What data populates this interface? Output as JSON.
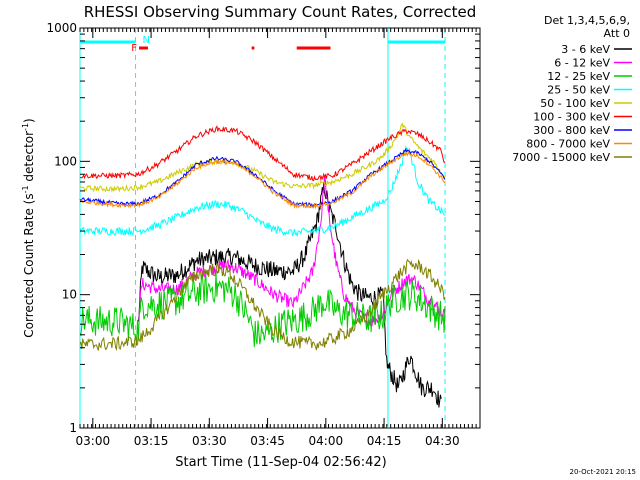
{
  "chart_data": {
    "type": "line",
    "title": "RHESSI Observing Summary Count Rates, Corrected",
    "xlabel": "Start Time (11-Sep-04 02:56:42)",
    "ylabel_main": "Corrected Count Rate (s",
    "ylabel_sup1": "-1",
    "ylabel_mid": " detector",
    "ylabel_sup2": "-1",
    "ylabel_end": ")",
    "x_range_min": [
      0,
      103
    ],
    "y_log": true,
    "ylim": [
      1,
      1000
    ],
    "x_ticks": [
      {
        "label": "03:00",
        "min": 3.3
      },
      {
        "label": "03:15",
        "min": 18.3
      },
      {
        "label": "03:30",
        "min": 33.3
      },
      {
        "label": "03:45",
        "min": 48.3
      },
      {
        "label": "04:00",
        "min": 63.3
      },
      {
        "label": "04:15",
        "min": 78.3
      },
      {
        "label": "04:30",
        "min": 93.3
      }
    ],
    "y_ticks": [
      {
        "label": "1",
        "value": 1
      },
      {
        "label": "10",
        "value": 10
      },
      {
        "label": "100",
        "value": 100
      },
      {
        "label": "1000",
        "value": 1000
      }
    ],
    "legend": {
      "header_1": "Det 1,3,4,5,6,9,",
      "header_2": "Att 0",
      "position": "right"
    },
    "series": [
      {
        "name": "3 - 6 keV",
        "color": "#000000",
        "pts": [
          [
            15,
            6.0
          ],
          [
            16,
            16.0
          ],
          [
            20,
            13.5
          ],
          [
            25,
            14.0
          ],
          [
            30,
            18.0
          ],
          [
            35,
            19.0
          ],
          [
            40,
            19.0
          ],
          [
            45,
            16.5
          ],
          [
            50,
            15.0
          ],
          [
            55,
            15.0
          ],
          [
            58,
            20.0
          ],
          [
            61,
            35.0
          ],
          [
            62,
            50.0
          ],
          [
            63,
            65.0
          ],
          [
            64,
            45.0
          ],
          [
            66,
            32.0
          ],
          [
            68,
            18.0
          ],
          [
            70,
            12.0
          ],
          [
            72,
            10.0
          ],
          [
            74,
            9.5
          ],
          [
            76,
            9.5
          ],
          [
            78,
            10.0
          ],
          [
            79,
            3.0
          ],
          [
            82,
            2.0
          ],
          [
            85,
            3.5
          ],
          [
            88,
            2.0
          ],
          [
            91,
            2.0
          ],
          [
            93,
            1.5
          ]
        ],
        "noisy": 0.07
      },
      {
        "name": "6 - 12 keV",
        "color": "#ff00ff",
        "pts": [
          [
            15,
            7.0
          ],
          [
            16,
            12.0
          ],
          [
            20,
            11.0
          ],
          [
            25,
            11.0
          ],
          [
            30,
            14.5
          ],
          [
            35,
            16.0
          ],
          [
            38,
            16.5
          ],
          [
            40,
            16.0
          ],
          [
            45,
            13.0
          ],
          [
            50,
            10.0
          ],
          [
            55,
            8.5
          ],
          [
            60,
            15.0
          ],
          [
            62,
            35.0
          ],
          [
            63,
            75.0
          ],
          [
            64,
            40.0
          ],
          [
            66,
            17.0
          ],
          [
            68,
            10.0
          ],
          [
            70,
            8.0
          ],
          [
            72,
            7.0
          ],
          [
            74,
            6.5
          ],
          [
            76,
            6.5
          ],
          [
            78,
            7.0
          ],
          [
            80,
            10.0
          ],
          [
            84,
            13.0
          ],
          [
            86,
            13.0
          ],
          [
            90,
            9.0
          ],
          [
            94,
            7.0
          ]
        ],
        "noisy": 0.05
      },
      {
        "name": "12 - 25 keV",
        "color": "#00cc00",
        "pts": [
          [
            0,
            6.5
          ],
          [
            5,
            6.3
          ],
          [
            10,
            6.3
          ],
          [
            15,
            5.5
          ],
          [
            16,
            8.5
          ],
          [
            20,
            8.5
          ],
          [
            25,
            9.0
          ],
          [
            30,
            10.5
          ],
          [
            35,
            11.5
          ],
          [
            38,
            11.0
          ],
          [
            40,
            10.0
          ],
          [
            43,
            7.0
          ],
          [
            45,
            5.0
          ],
          [
            48,
            5.0
          ],
          [
            52,
            6.0
          ],
          [
            56,
            6.5
          ],
          [
            60,
            7.5
          ],
          [
            63,
            9.0
          ],
          [
            66,
            7.5
          ],
          [
            70,
            7.0
          ],
          [
            74,
            6.5
          ],
          [
            78,
            7.0
          ],
          [
            80,
            9.0
          ],
          [
            84,
            10.0
          ],
          [
            86,
            10.0
          ],
          [
            90,
            8.0
          ],
          [
            94,
            6.5
          ]
        ],
        "noisy": 0.12
      },
      {
        "name": "25 - 50 keV",
        "color": "#00ffff",
        "pts": [
          [
            0,
            30
          ],
          [
            10,
            30
          ],
          [
            15,
            30
          ],
          [
            20,
            33
          ],
          [
            25,
            38
          ],
          [
            30,
            45
          ],
          [
            35,
            48
          ],
          [
            38,
            47
          ],
          [
            42,
            42
          ],
          [
            46,
            35
          ],
          [
            50,
            31
          ],
          [
            55,
            29
          ],
          [
            60,
            30
          ],
          [
            65,
            32
          ],
          [
            70,
            38
          ],
          [
            75,
            45
          ],
          [
            78,
            50
          ],
          [
            80,
            60
          ],
          [
            83,
            100
          ],
          [
            84,
            130
          ],
          [
            85,
            115
          ],
          [
            87,
            70
          ],
          [
            90,
            50
          ],
          [
            94,
            40
          ]
        ],
        "noisy": 0.03
      },
      {
        "name": "50 - 100 keV",
        "color": "#cccc00",
        "pts": [
          [
            0,
            63
          ],
          [
            10,
            62
          ],
          [
            15,
            64
          ],
          [
            20,
            70
          ],
          [
            25,
            82
          ],
          [
            30,
            95
          ],
          [
            35,
            100
          ],
          [
            40,
            98
          ],
          [
            45,
            85
          ],
          [
            50,
            70
          ],
          [
            55,
            65
          ],
          [
            60,
            66
          ],
          [
            65,
            70
          ],
          [
            70,
            80
          ],
          [
            75,
            95
          ],
          [
            78,
            110
          ],
          [
            80,
            130
          ],
          [
            82,
            160
          ],
          [
            83,
            190
          ],
          [
            85,
            150
          ],
          [
            88,
            120
          ],
          [
            91,
            100
          ],
          [
            94,
            75
          ]
        ],
        "noisy": 0.02
      },
      {
        "name": "100 - 300 keV",
        "color": "#ff0000",
        "pts": [
          [
            0,
            78
          ],
          [
            10,
            78
          ],
          [
            15,
            80
          ],
          [
            20,
            95
          ],
          [
            25,
            120
          ],
          [
            30,
            155
          ],
          [
            35,
            175
          ],
          [
            40,
            170
          ],
          [
            45,
            140
          ],
          [
            50,
            105
          ],
          [
            55,
            80
          ],
          [
            60,
            75
          ],
          [
            65,
            78
          ],
          [
            70,
            95
          ],
          [
            75,
            120
          ],
          [
            80,
            150
          ],
          [
            84,
            170
          ],
          [
            87,
            160
          ],
          [
            90,
            140
          ],
          [
            93,
            120
          ],
          [
            94,
            95
          ]
        ],
        "noisy": 0.02
      },
      {
        "name": "300 - 800 keV",
        "color": "#0000ff",
        "pts": [
          [
            0,
            52
          ],
          [
            10,
            48
          ],
          [
            15,
            48
          ],
          [
            20,
            55
          ],
          [
            25,
            70
          ],
          [
            30,
            95
          ],
          [
            35,
            105
          ],
          [
            40,
            100
          ],
          [
            45,
            80
          ],
          [
            50,
            60
          ],
          [
            55,
            48
          ],
          [
            60,
            47
          ],
          [
            65,
            50
          ],
          [
            70,
            60
          ],
          [
            75,
            80
          ],
          [
            80,
            100
          ],
          [
            84,
            120
          ],
          [
            87,
            115
          ],
          [
            90,
            100
          ],
          [
            94,
            75
          ]
        ],
        "noisy": 0.015
      },
      {
        "name": "800 - 7000 keV",
        "color": "#ff8800",
        "pts": [
          [
            0,
            50
          ],
          [
            10,
            47
          ],
          [
            15,
            47
          ],
          [
            20,
            53
          ],
          [
            25,
            68
          ],
          [
            30,
            90
          ],
          [
            35,
            100
          ],
          [
            40,
            96
          ],
          [
            45,
            78
          ],
          [
            50,
            58
          ],
          [
            55,
            47
          ],
          [
            60,
            46
          ],
          [
            65,
            49
          ],
          [
            70,
            58
          ],
          [
            75,
            78
          ],
          [
            80,
            98
          ],
          [
            84,
            115
          ],
          [
            87,
            110
          ],
          [
            90,
            95
          ],
          [
            94,
            70
          ]
        ],
        "noisy": 0.015
      },
      {
        "name": "7000 - 15000 keV",
        "color": "#808000",
        "pts": [
          [
            0,
            4.2
          ],
          [
            10,
            4.3
          ],
          [
            15,
            4.5
          ],
          [
            18,
            5.5
          ],
          [
            22,
            7.5
          ],
          [
            26,
            11.0
          ],
          [
            30,
            14.0
          ],
          [
            34,
            15.5
          ],
          [
            38,
            15.0
          ],
          [
            42,
            11.0
          ],
          [
            46,
            7.5
          ],
          [
            50,
            5.3
          ],
          [
            54,
            4.5
          ],
          [
            58,
            4.3
          ],
          [
            62,
            4.3
          ],
          [
            66,
            4.8
          ],
          [
            70,
            5.5
          ],
          [
            74,
            7.0
          ],
          [
            78,
            10.0
          ],
          [
            82,
            14.0
          ],
          [
            85,
            17.0
          ],
          [
            88,
            16.0
          ],
          [
            91,
            13.0
          ],
          [
            94,
            10.0
          ]
        ],
        "noisy": 0.05
      }
    ],
    "annotations": {
      "flags": [
        {
          "label": "F",
          "color": "#ff0000",
          "start": 15.2,
          "end": 17.5
        },
        {
          "label": "",
          "color": "#ff0000",
          "start": 44.2,
          "end": 44.9
        },
        {
          "label": "",
          "color": "#ff0000",
          "start": 55.8,
          "end": 64.5
        }
      ],
      "night_label": "N",
      "night_color": "#00ffff",
      "night_bars": [
        {
          "start": 0,
          "end": 14.3
        },
        {
          "start": 79.3,
          "end": 94
        }
      ],
      "solid_vlines": [
        0,
        79.3
      ],
      "dashed_vlines": [
        14.3,
        94
      ]
    },
    "footer_date": "20-Oct-2021 20:15"
  }
}
